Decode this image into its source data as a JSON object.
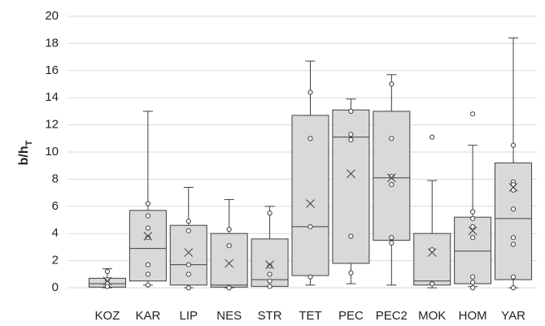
{
  "chart_data": {
    "type": "box",
    "y_label": "b/h",
    "y_label_sub": "T",
    "categories": [
      "KOZ",
      "KAR",
      "LIP",
      "NES",
      "STR",
      "TET",
      "PEC",
      "PEC2",
      "MOK",
      "HOM",
      "YAR"
    ],
    "box_color": "#d9d9d9",
    "ylim": [
      0,
      20
    ],
    "yticks": [
      0,
      2,
      4,
      6,
      8,
      10,
      12,
      14,
      16,
      18,
      20
    ],
    "grid": true,
    "boxes": [
      {
        "min": 0,
        "q1": 0.05,
        "median": 0.3,
        "q3": 0.7,
        "max": 1.4,
        "mean": 0.5,
        "points": [
          1.2,
          0.6,
          0.3,
          0.1
        ]
      },
      {
        "min": 0.2,
        "q1": 0.5,
        "median": 2.9,
        "q3": 5.7,
        "max": 13.0,
        "mean": 3.8,
        "points": [
          6.2,
          5.3,
          4.4,
          3.7,
          1.7,
          1.0,
          0.2
        ]
      },
      {
        "min": 0,
        "q1": 0.2,
        "median": 1.7,
        "q3": 4.6,
        "max": 7.4,
        "mean": 2.6,
        "points": [
          4.9,
          4.2,
          1.7,
          1.0,
          0
        ]
      },
      {
        "min": 0,
        "q1": 0.05,
        "median": 0.2,
        "q3": 4.0,
        "max": 6.5,
        "mean": 1.8,
        "points": [
          4.3,
          3.1,
          0
        ]
      },
      {
        "min": 0.1,
        "q1": 0.1,
        "median": 0.6,
        "q3": 3.6,
        "max": 6.0,
        "mean": 1.7,
        "points": [
          5.5,
          1.6,
          1.0,
          0.5,
          0.1
        ]
      },
      {
        "min": 0.2,
        "q1": 0.9,
        "median": 4.5,
        "q3": 12.7,
        "max": 16.7,
        "mean": 6.2,
        "points": [
          14.4,
          11.0,
          4.5,
          0.8
        ]
      },
      {
        "min": 0.3,
        "q1": 1.8,
        "median": 11.1,
        "q3": 13.1,
        "max": 13.9,
        "mean": 8.4,
        "points": [
          13.0,
          11.3,
          10.9,
          3.8,
          1.1
        ]
      },
      {
        "min": 0.2,
        "q1": 3.5,
        "median": 8.1,
        "q3": 13.0,
        "max": 15.7,
        "mean": 8.1,
        "points": [
          15.0,
          11.0,
          8.2,
          7.6,
          3.7,
          3.3
        ]
      },
      {
        "min": 0,
        "q1": 0.2,
        "median": 0.5,
        "q3": 4.0,
        "max": 7.9,
        "mean": 2.6,
        "points": [
          11.1,
          2.8,
          0.3
        ]
      },
      {
        "min": 0.1,
        "q1": 0.3,
        "median": 2.7,
        "q3": 5.2,
        "max": 10.5,
        "mean": 4.2,
        "points": [
          12.8,
          5.6,
          5.1,
          4.5,
          3.7,
          0.8,
          0.4,
          0
        ]
      },
      {
        "min": 0,
        "q1": 0.6,
        "median": 5.1,
        "q3": 9.2,
        "max": 18.4,
        "mean": 7.4,
        "points": [
          10.5,
          7.8,
          7.6,
          7.2,
          5.8,
          3.7,
          3.2,
          0.8,
          0
        ]
      }
    ]
  }
}
